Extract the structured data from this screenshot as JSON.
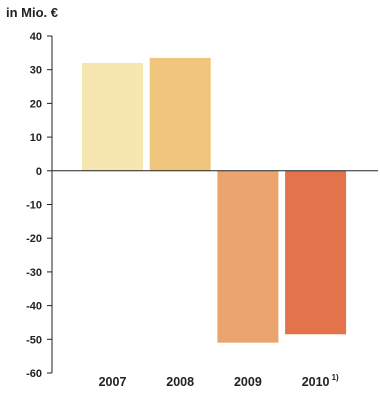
{
  "chart_data": {
    "type": "bar",
    "unit_label": "in Mio. €",
    "categories": [
      "2007",
      "2008",
      "2009",
      "2010"
    ],
    "category_footnotes": [
      "",
      "",
      "",
      "1)"
    ],
    "values": [
      32,
      33.5,
      -51,
      -48.5
    ],
    "colors": [
      "#f8e6b0",
      "#f0c67e",
      "#eca46f",
      "#e2734a"
    ],
    "ylim": [
      -60,
      40
    ],
    "yticks": [
      40,
      30,
      20,
      10,
      0,
      -10,
      -20,
      -30,
      -40,
      -50,
      -60
    ],
    "ytick_labels": [
      "40",
      "30",
      "20",
      "10",
      "0",
      "-10",
      "-20",
      "-30",
      "-40",
      "-50",
      "-60"
    ],
    "grid": false,
    "legend": "none"
  }
}
